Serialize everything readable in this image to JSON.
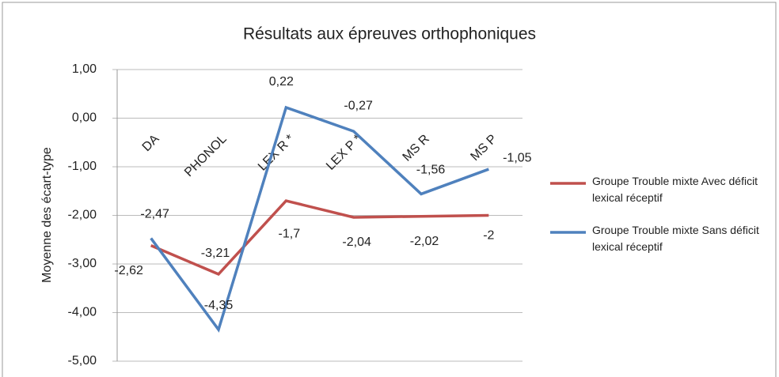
{
  "chart_data": {
    "type": "line",
    "title": "Résultats aux épreuves orthophoniques",
    "y_label": "Moyenne des écart-type",
    "categories": [
      "DA",
      "PHONOL",
      "LEX R *",
      "LEX P *",
      "MS R",
      "MS P"
    ],
    "series": [
      {
        "name": "Groupe Trouble mixte Avec déficit lexical réceptif",
        "color": "#c0504d",
        "values": [
          -2.62,
          -3.21,
          -1.7,
          -2.04,
          -2.02,
          -2
        ],
        "value_labels": [
          "-2,62",
          "-3,21",
          "-1,7",
          "-2,04",
          "-2,02",
          "-2"
        ]
      },
      {
        "name": "Groupe  Trouble mixte Sans déficit lexical réceptif",
        "color": "#4f81bd",
        "values": [
          -2.47,
          -4.35,
          0.22,
          -0.27,
          -1.56,
          -1.05
        ],
        "value_labels": [
          "-2,47",
          "-4,35",
          "0,22",
          "-0,27",
          "-1,56",
          "-1,05"
        ]
      }
    ],
    "ylim": [
      -5,
      1
    ],
    "yticks": [
      {
        "value": -5,
        "label": "-5,00"
      },
      {
        "value": -4,
        "label": "-4,00"
      },
      {
        "value": -3,
        "label": "-3,00"
      },
      {
        "value": -2,
        "label": "-2,00"
      },
      {
        "value": -1,
        "label": "-1,00"
      },
      {
        "value": 0,
        "label": "0,00"
      },
      {
        "value": 1,
        "label": "1,00"
      }
    ],
    "grid": true,
    "legend": "right"
  }
}
